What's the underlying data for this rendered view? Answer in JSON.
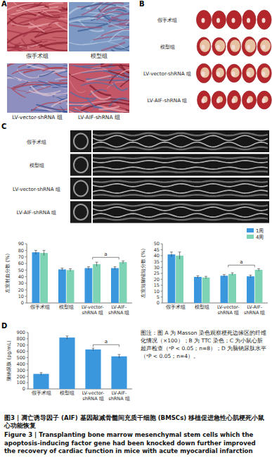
{
  "panels": {
    "A": {
      "label": "A",
      "groups": [
        "假手术组",
        "模型组",
        "LV-vector-shRNA 组",
        "LV-AIF-shRNA 组"
      ]
    },
    "B": {
      "label": "B",
      "groups": [
        "假手术组",
        "模型组",
        "LV-vector-shRNA 组",
        "LV-AIF-shRNA 组"
      ]
    },
    "C": {
      "label": "C",
      "groups": [
        "假手术组",
        "模型组",
        "LV-vector-shRNA 组",
        "LV-AIF-shRNA 组"
      ]
    },
    "D": {
      "label": "D"
    }
  },
  "chart_data": [
    {
      "type": "bar",
      "y_label": "左室射血分数 (%)",
      "categories": [
        "假手术组",
        "模型组",
        "LV-vector-shRNA 组",
        "LV-AIF-shRNA 组"
      ],
      "series": [
        {
          "color": "#3a96dd",
          "values": [
            77,
            51,
            53,
            53
          ],
          "errors": [
            3,
            2,
            2,
            2
          ]
        },
        {
          "color": "#7dd3b4",
          "values": [
            76,
            50,
            59,
            62
          ],
          "errors": [
            4,
            2,
            3,
            2
          ]
        }
      ],
      "ylim": [
        0,
        90
      ],
      "yticks": [
        0,
        10,
        20,
        30,
        40,
        50,
        60,
        70,
        80,
        90
      ],
      "annotations": [
        {
          "text": "a",
          "between": [
            "LV-vector-shRNA 组",
            "LV-AIF-shRNA 组"
          ]
        }
      ]
    },
    {
      "type": "bar",
      "y_label": "左室短轴缩短分数 (%)",
      "categories": [
        "假手术组",
        "模型组",
        "LV-vector-shRNA 组",
        "LV-AIF-shRNA 组"
      ],
      "series": [
        {
          "name": "1周",
          "color": "#3a96dd",
          "values": [
            41,
            22,
            23,
            22.5
          ],
          "errors": [
            2,
            1,
            1,
            1
          ]
        },
        {
          "name": "4周",
          "color": "#7dd3b4",
          "values": [
            40,
            21.5,
            24.5,
            28
          ],
          "errors": [
            3,
            1,
            1,
            1
          ]
        }
      ],
      "ylim": [
        0,
        50
      ],
      "yticks": [
        0,
        5,
        10,
        15,
        20,
        25,
        30,
        35,
        40,
        45,
        50
      ],
      "legend": "top-right",
      "annotations": [
        {
          "text": "a",
          "between": [
            "LV-vector-shRNA 组",
            "LV-AIF-shRNA 组"
          ]
        }
      ]
    },
    {
      "type": "bar",
      "y_label": "脑钠尿肽 (pg/mL)",
      "categories": [
        "假手术组",
        "模型组",
        "LV-vector-shRNA 组",
        "LV-AIF-shRNA 组"
      ],
      "series": [
        {
          "color": "#3a96dd",
          "values": [
            240,
            820,
            630,
            520
          ],
          "errors": [
            20,
            25,
            20,
            30
          ]
        }
      ],
      "ylim": [
        0,
        900
      ],
      "yticks": [
        0,
        100,
        200,
        300,
        400,
        500,
        600,
        700,
        800,
        900
      ],
      "annotations": [
        {
          "text": "a",
          "between": [
            "LV-vector-shRNA 组",
            "LV-AIF-shRNA 组"
          ]
        }
      ]
    }
  ],
  "note": "图注：图 A 为 Masson 染色观察梗死边缘区的纤维化情况（×100）；B 为 TTC 染色；C 为小鼠心脏超声检查（ᵃP < 0.05；n=8）；D 为脑钠尿肽水平（ᵃP < 0.05；n=4）。",
  "caption": {
    "zh": "图3 | 凋亡诱导因子 (AIF) 基因敲减骨髓间充质干细胞 (BMSCs) 移植促进急性心肌梗死小鼠心功能恢复",
    "en": "Figure 3 | Transplanting bone marrow mesenchymal stem cells which the apoptosis-inducing factor gene had been knocked down further improved the recovery of cardiac function in mice with acute myocardial infarction"
  }
}
